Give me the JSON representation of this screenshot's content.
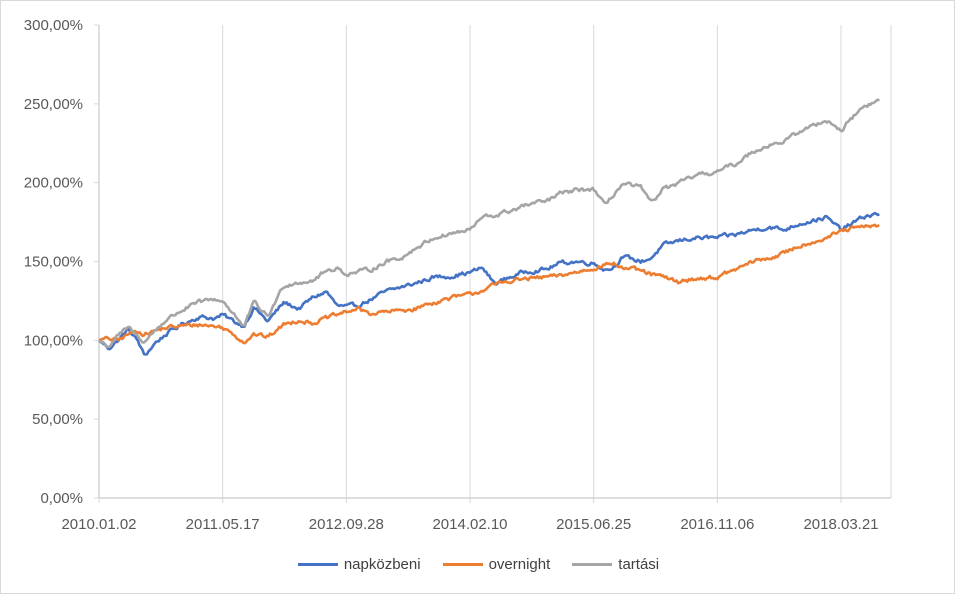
{
  "chart_data": {
    "type": "line",
    "title": "",
    "xlabel": "",
    "ylabel": "",
    "x_tick_labels": [
      "2010.01.02",
      "2011.05.17",
      "2012.09.28",
      "2014.02.10",
      "2015.06.25",
      "2016.11.06",
      "2018.03.21"
    ],
    "x_range": [
      "2010.01.02",
      "2018.08.23"
    ],
    "y_tick_labels": [
      "0,00%",
      "50,00%",
      "100,00%",
      "150,00%",
      "200,00%",
      "250,00%",
      "300,00%"
    ],
    "ylim": [
      0,
      300
    ],
    "grid": {
      "vertical": true,
      "horizontal": false
    },
    "legend_position": "bottom",
    "series": [
      {
        "name": "napközbeni",
        "color": "#4472c4",
        "points": [
          [
            "2010.01.02",
            100
          ],
          [
            "2010.02.10",
            95
          ],
          [
            "2010.03.20",
            100
          ],
          [
            "2010.05.01",
            107
          ],
          [
            "2010.06.10",
            99
          ],
          [
            "2010.07.05",
            90
          ],
          [
            "2010.08.15",
            98
          ],
          [
            "2010.10.01",
            104
          ],
          [
            "2010.12.01",
            110
          ],
          [
            "2011.02.10",
            115
          ],
          [
            "2011.04.15",
            114
          ],
          [
            "2011.05.17",
            116
          ],
          [
            "2011.07.01",
            112
          ],
          [
            "2011.08.10",
            109
          ],
          [
            "2011.09.20",
            121
          ],
          [
            "2011.11.15",
            112
          ],
          [
            "2012.01.20",
            124
          ],
          [
            "2012.03.20",
            120
          ],
          [
            "2012.05.15",
            127
          ],
          [
            "2012.07.10",
            131
          ],
          [
            "2012.08.20",
            122
          ],
          [
            "2012.09.28",
            121
          ],
          [
            "2012.11.10",
            122
          ],
          [
            "2013.01.05",
            126
          ],
          [
            "2013.03.10",
            131
          ],
          [
            "2013.05.15",
            134
          ],
          [
            "2013.07.01",
            136
          ],
          [
            "2013.09.15",
            140
          ],
          [
            "2013.12.01",
            141
          ],
          [
            "2014.02.10",
            143
          ],
          [
            "2014.04.01",
            146
          ],
          [
            "2014.05.20",
            136
          ],
          [
            "2014.07.20",
            140
          ],
          [
            "2014.10.01",
            144
          ],
          [
            "2014.12.15",
            145
          ],
          [
            "2015.02.10",
            149
          ],
          [
            "2015.04.10",
            150
          ],
          [
            "2015.06.25",
            149
          ],
          [
            "2015.08.10",
            145
          ],
          [
            "2015.09.10",
            146
          ],
          [
            "2015.10.20",
            153
          ],
          [
            "2016.01.01",
            150
          ],
          [
            "2016.02.10",
            152
          ],
          [
            "2016.04.01",
            160
          ],
          [
            "2016.06.01",
            163
          ],
          [
            "2016.08.01",
            165
          ],
          [
            "2016.11.06",
            165
          ],
          [
            "2017.01.20",
            167
          ],
          [
            "2017.04.01",
            170
          ],
          [
            "2017.06.01",
            172
          ],
          [
            "2017.08.01",
            170
          ],
          [
            "2017.10.01",
            174
          ],
          [
            "2018.01.20",
            178
          ],
          [
            "2018.03.21",
            170
          ],
          [
            "2018.05.15",
            175
          ],
          [
            "2018.07.01",
            179
          ],
          [
            "2018.08.23",
            180
          ]
        ]
      },
      {
        "name": "overnight",
        "color": "#ed7d31",
        "points": [
          [
            "2010.01.02",
            100
          ],
          [
            "2010.02.10",
            101
          ],
          [
            "2010.03.20",
            100
          ],
          [
            "2010.05.01",
            104
          ],
          [
            "2010.06.10",
            106
          ],
          [
            "2010.07.05",
            104
          ],
          [
            "2010.08.15",
            106
          ],
          [
            "2010.10.01",
            108
          ],
          [
            "2010.12.01",
            109
          ],
          [
            "2011.02.10",
            110
          ],
          [
            "2011.04.15",
            109
          ],
          [
            "2011.05.17",
            108
          ],
          [
            "2011.07.01",
            104
          ],
          [
            "2011.08.10",
            99
          ],
          [
            "2011.09.20",
            104
          ],
          [
            "2011.11.15",
            102
          ],
          [
            "2012.01.20",
            110
          ],
          [
            "2012.03.20",
            113
          ],
          [
            "2012.05.15",
            111
          ],
          [
            "2012.07.10",
            114
          ],
          [
            "2012.08.20",
            116
          ],
          [
            "2012.09.28",
            118
          ],
          [
            "2012.11.10",
            120
          ],
          [
            "2013.01.05",
            117
          ],
          [
            "2013.03.10",
            118
          ],
          [
            "2013.05.15",
            119
          ],
          [
            "2013.07.01",
            120
          ],
          [
            "2013.09.15",
            124
          ],
          [
            "2013.12.01",
            127
          ],
          [
            "2014.02.10",
            129
          ],
          [
            "2014.04.01",
            132
          ],
          [
            "2014.05.20",
            135
          ],
          [
            "2014.07.20",
            138
          ],
          [
            "2014.10.01",
            139
          ],
          [
            "2014.12.15",
            140
          ],
          [
            "2015.02.10",
            141
          ],
          [
            "2015.04.10",
            143
          ],
          [
            "2015.06.25",
            146
          ],
          [
            "2015.08.10",
            148
          ],
          [
            "2015.09.10",
            149
          ],
          [
            "2015.10.20",
            146
          ],
          [
            "2016.01.01",
            144
          ],
          [
            "2016.02.10",
            142
          ],
          [
            "2016.04.01",
            140
          ],
          [
            "2016.06.01",
            137
          ],
          [
            "2016.08.01",
            139
          ],
          [
            "2016.11.06",
            140
          ],
          [
            "2017.01.20",
            145
          ],
          [
            "2017.04.01",
            150
          ],
          [
            "2017.06.01",
            152
          ],
          [
            "2017.08.01",
            155
          ],
          [
            "2017.10.01",
            160
          ],
          [
            "2018.01.20",
            165
          ],
          [
            "2018.03.21",
            169
          ],
          [
            "2018.05.15",
            171
          ],
          [
            "2018.07.01",
            172
          ],
          [
            "2018.08.23",
            173
          ]
        ]
      },
      {
        "name": "tartási",
        "color": "#a5a5a5",
        "points": [
          [
            "2010.01.02",
            100
          ],
          [
            "2010.02.10",
            96
          ],
          [
            "2010.03.20",
            103
          ],
          [
            "2010.05.01",
            108
          ],
          [
            "2010.06.10",
            102
          ],
          [
            "2010.07.05",
            99
          ],
          [
            "2010.08.15",
            106
          ],
          [
            "2010.10.01",
            113
          ],
          [
            "2010.12.01",
            119
          ],
          [
            "2011.02.10",
            124
          ],
          [
            "2011.04.15",
            126
          ],
          [
            "2011.05.17",
            125
          ],
          [
            "2011.07.01",
            117
          ],
          [
            "2011.08.10",
            108
          ],
          [
            "2011.09.20",
            124
          ],
          [
            "2011.11.15",
            115
          ],
          [
            "2012.01.20",
            135
          ],
          [
            "2012.03.20",
            137
          ],
          [
            "2012.05.15",
            138
          ],
          [
            "2012.07.10",
            144
          ],
          [
            "2012.08.20",
            146
          ],
          [
            "2012.09.28",
            142
          ],
          [
            "2012.11.10",
            143
          ],
          [
            "2013.01.05",
            145
          ],
          [
            "2013.03.10",
            150
          ],
          [
            "2013.05.15",
            153
          ],
          [
            "2013.07.01",
            158
          ],
          [
            "2013.09.15",
            165
          ],
          [
            "2013.12.01",
            168
          ],
          [
            "2014.02.10",
            170
          ],
          [
            "2014.04.01",
            178
          ],
          [
            "2014.05.20",
            179
          ],
          [
            "2014.07.20",
            182
          ],
          [
            "2014.10.01",
            186
          ],
          [
            "2014.12.15",
            188
          ],
          [
            "2015.02.10",
            193
          ],
          [
            "2015.04.10",
            195
          ],
          [
            "2015.06.25",
            196
          ],
          [
            "2015.08.10",
            185
          ],
          [
            "2015.09.10",
            192
          ],
          [
            "2015.10.20",
            199
          ],
          [
            "2016.01.01",
            197
          ],
          [
            "2016.02.10",
            187
          ],
          [
            "2016.04.01",
            196
          ],
          [
            "2016.06.01",
            199
          ],
          [
            "2016.08.01",
            204
          ],
          [
            "2016.11.06",
            207
          ],
          [
            "2017.01.20",
            212
          ],
          [
            "2017.04.01",
            220
          ],
          [
            "2017.06.01",
            224
          ],
          [
            "2017.08.01",
            226
          ],
          [
            "2017.10.01",
            232
          ],
          [
            "2018.01.20",
            240
          ],
          [
            "2018.03.21",
            233
          ],
          [
            "2018.05.15",
            243
          ],
          [
            "2018.07.01",
            249
          ],
          [
            "2018.08.23",
            252
          ]
        ]
      }
    ]
  }
}
